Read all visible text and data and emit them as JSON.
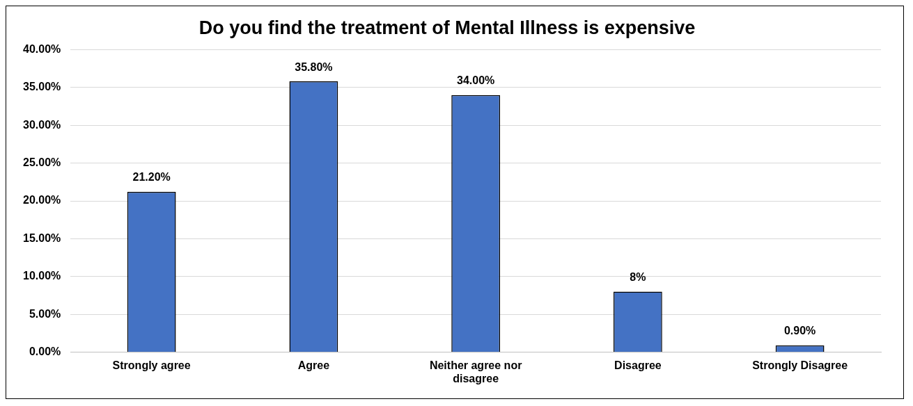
{
  "chart_data": {
    "type": "bar",
    "title": "Do you find the treatment of Mental Illness is expensive",
    "categories": [
      "Strongly agree",
      "Agree",
      "Neither agree nor disagree",
      "Disagree",
      "Strongly Disagree"
    ],
    "values": [
      21.2,
      35.8,
      34,
      8,
      0.9
    ],
    "value_labels": [
      "21.20%",
      "35.80%",
      "34.00%",
      "8%",
      "0.90%"
    ],
    "color": "#4472c4",
    "ylim": [
      0,
      40
    ],
    "yticks": [
      {
        "value": 0,
        "label": "0.00%"
      },
      {
        "value": 5,
        "label": "5.00%"
      },
      {
        "value": 10,
        "label": "10.00%"
      },
      {
        "value": 15,
        "label": "15.00%"
      },
      {
        "value": 20,
        "label": "20.00%"
      },
      {
        "value": 25,
        "label": "25.00%"
      },
      {
        "value": 30,
        "label": "30.00%"
      },
      {
        "value": 35,
        "label": "35.00%"
      },
      {
        "value": 40,
        "label": "40.00%"
      }
    ],
    "grid": "y",
    "legend": false
  }
}
